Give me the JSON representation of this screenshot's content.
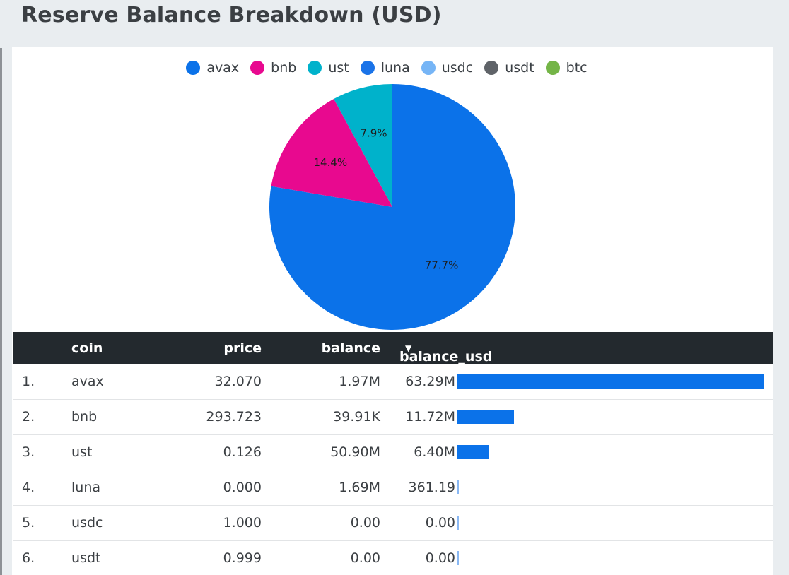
{
  "page": {
    "title": "Reserve Balance Breakdown (USD)"
  },
  "legend": [
    {
      "label": "avax",
      "color": "#0b72e9"
    },
    {
      "label": "bnb",
      "color": "#e8098f"
    },
    {
      "label": "ust",
      "color": "#00b2cb"
    },
    {
      "label": "luna",
      "color": "#1a73e8"
    },
    {
      "label": "usdc",
      "color": "#76b5f6"
    },
    {
      "label": "usdt",
      "color": "#5f6368"
    },
    {
      "label": "btc",
      "color": "#74b547"
    }
  ],
  "chart_data": {
    "type": "pie",
    "labels": [
      "avax",
      "bnb",
      "ust"
    ],
    "values": [
      77.7,
      14.4,
      7.9
    ],
    "value_labels": [
      "77.7%",
      "14.4%",
      "7.9%"
    ],
    "colors": [
      "#0b72e9",
      "#e8098f",
      "#00b2cb"
    ],
    "legend_position": "top"
  },
  "table": {
    "headers": {
      "coin": "coin",
      "price": "price",
      "balance": "balance",
      "balance_usd": "balance_usd"
    },
    "sort_indicator": "▼",
    "rows": [
      {
        "index": "1.",
        "coin": "avax",
        "price": "32.070",
        "balance": "1.97M",
        "balance_usd": "63.29M",
        "value": 63.29
      },
      {
        "index": "2.",
        "coin": "bnb",
        "price": "293.723",
        "balance": "39.91K",
        "balance_usd": "11.72M",
        "value": 11.72
      },
      {
        "index": "3.",
        "coin": "ust",
        "price": "0.126",
        "balance": "50.90M",
        "balance_usd": "6.40M",
        "value": 6.4
      },
      {
        "index": "4.",
        "coin": "luna",
        "price": "0.000",
        "balance": "1.69M",
        "balance_usd": "361.19",
        "value": 0.00036119
      },
      {
        "index": "5.",
        "coin": "usdc",
        "price": "1.000",
        "balance": "0.00",
        "balance_usd": "0.00",
        "value": 0
      },
      {
        "index": "6.",
        "coin": "usdt",
        "price": "0.999",
        "balance": "0.00",
        "balance_usd": "0.00",
        "value": 0
      }
    ]
  }
}
